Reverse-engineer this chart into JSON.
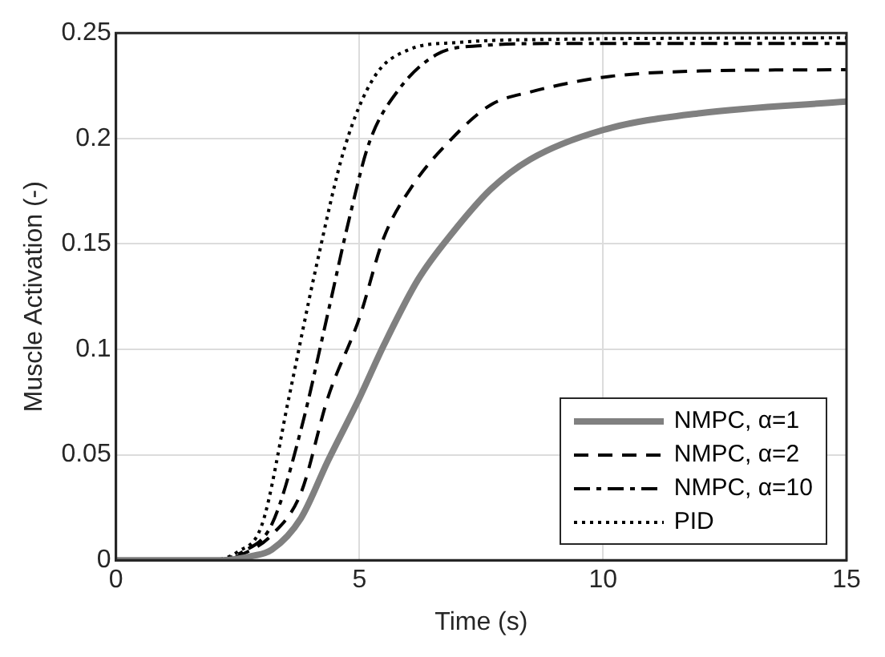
{
  "chart_data": {
    "type": "line",
    "xlabel": "Time (s)",
    "ylabel": "Muscle Activation (-)",
    "xlim": [
      0,
      15
    ],
    "xticks": [
      0,
      5,
      10,
      15
    ],
    "ylim": [
      0,
      0.25
    ],
    "yticks": [
      0,
      0.05,
      0.1,
      0.15,
      0.2,
      0.25
    ],
    "grid": true,
    "legend": "bottom right",
    "marker": "none",
    "series": [
      {
        "name": "NMPC, α=1",
        "color": "#808080",
        "line_style": "solid",
        "x": [
          0,
          2.2,
          2.8,
          3.2,
          3.8,
          4.35,
          5,
          5.5,
          6.2,
          6.9,
          7.7,
          8.5,
          10,
          12,
          15
        ],
        "values": [
          0,
          0,
          0.002,
          0.005,
          0.02,
          0.047,
          0.077,
          0.102,
          0.133,
          0.155,
          0.176,
          0.19,
          0.204,
          0.212,
          0.2175
        ]
      },
      {
        "name": "NMPC, α=2",
        "color": "#000000",
        "line_style": "dashed",
        "x": [
          0,
          2.1,
          2.7,
          3.2,
          3.8,
          4.35,
          5,
          5.5,
          6.1,
          6.9,
          7.7,
          8.5,
          10,
          12,
          15
        ],
        "values": [
          0,
          0,
          0.004,
          0.012,
          0.032,
          0.077,
          0.115,
          0.153,
          0.178,
          0.2,
          0.216,
          0.222,
          0.229,
          0.232,
          0.2326
        ]
      },
      {
        "name": "NMPC, α=10",
        "color": "#000000",
        "line_style": "dashdot",
        "x": [
          0,
          2,
          2.6,
          3.2,
          3.8,
          4.35,
          4.8,
          5.2,
          5.8,
          6.6,
          7.5,
          9,
          15
        ],
        "values": [
          0,
          0,
          0.004,
          0.017,
          0.062,
          0.117,
          0.163,
          0.198,
          0.223,
          0.24,
          0.244,
          0.245,
          0.245
        ]
      },
      {
        "name": "PID",
        "color": "#000000",
        "line_style": "dotted",
        "x": [
          0,
          1.9,
          2.5,
          3,
          3.55,
          4.1,
          4.7,
          5.3,
          6,
          7,
          9,
          15
        ],
        "values": [
          0,
          0,
          0.004,
          0.017,
          0.077,
          0.138,
          0.196,
          0.229,
          0.242,
          0.2455,
          0.247,
          0.2477
        ]
      }
    ]
  }
}
